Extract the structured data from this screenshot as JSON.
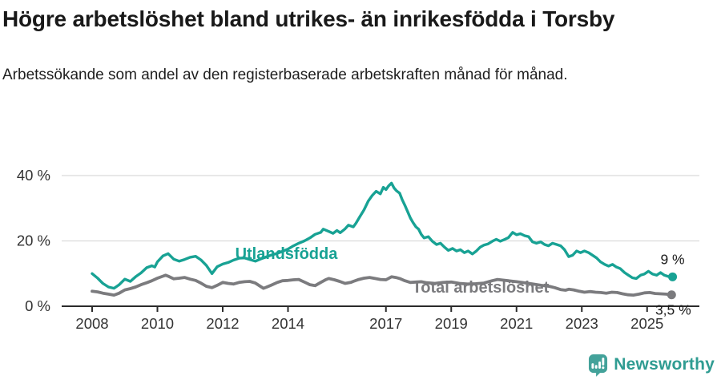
{
  "header": {
    "title": "Högre arbetslöshet bland utrikes- än inrikesfödda i Torsby",
    "subtitle": "Arbetssökande som andel av den registerbaserade arbetskraften månad för månad."
  },
  "footer": {
    "brand": "Newsworthy"
  },
  "colors": {
    "accent_teal": "#18A294",
    "series_gray": "#7B7B7E",
    "gridline": "#DBDBDB",
    "axis_line": "#2B2B2B",
    "axis_text": "#333333",
    "annotation_text": "#1A1A1A",
    "logo_badge": "#43A29A",
    "logo_text": "#2F9C92",
    "logo_glyph": "#FFFFFF"
  },
  "chart_data": {
    "type": "line",
    "title": "",
    "xlabel": "",
    "ylabel": "",
    "x_unit": "year (monthly data)",
    "xlim": [
      2007.07,
      2026.6
    ],
    "ylim": [
      0,
      44
    ],
    "grid": true,
    "grid_values": [
      20,
      40
    ],
    "y_ticks": [
      {
        "value": 0,
        "label": "0 %"
      },
      {
        "value": 20,
        "label": "20 %"
      },
      {
        "value": 40,
        "label": "40 %"
      }
    ],
    "x_ticks": [
      {
        "value": 2008,
        "label": "2008"
      },
      {
        "value": 2010,
        "label": "2010"
      },
      {
        "value": 2012,
        "label": "2012"
      },
      {
        "value": 2014,
        "label": "2014"
      },
      {
        "value": 2017,
        "label": "2017"
      },
      {
        "value": 2019,
        "label": "2019"
      },
      {
        "value": 2021,
        "label": "2021"
      },
      {
        "value": 2023,
        "label": "2023"
      },
      {
        "value": 2025,
        "label": "2025"
      }
    ],
    "legend_position": "inline-labels",
    "series": [
      {
        "name": "Utlandsfödda",
        "color": "#18A294",
        "end_label": "9 %",
        "end_value": 9,
        "name_x": 2013.95,
        "name_y": 16.2,
        "end_label_dx": 0,
        "end_label_dy": -16,
        "points": [
          [
            2008.0,
            10.0
          ],
          [
            2008.17,
            8.6
          ],
          [
            2008.33,
            7.0
          ],
          [
            2008.5,
            5.9
          ],
          [
            2008.67,
            5.5
          ],
          [
            2008.83,
            6.6
          ],
          [
            2009.0,
            8.3
          ],
          [
            2009.17,
            7.6
          ],
          [
            2009.33,
            9.0
          ],
          [
            2009.5,
            10.2
          ],
          [
            2009.67,
            11.8
          ],
          [
            2009.83,
            12.4
          ],
          [
            2009.92,
            12.0
          ],
          [
            2010.0,
            13.6
          ],
          [
            2010.17,
            15.4
          ],
          [
            2010.33,
            16.1
          ],
          [
            2010.5,
            14.4
          ],
          [
            2010.67,
            13.8
          ],
          [
            2010.83,
            14.3
          ],
          [
            2011.0,
            15.0
          ],
          [
            2011.17,
            15.3
          ],
          [
            2011.33,
            14.2
          ],
          [
            2011.5,
            12.5
          ],
          [
            2011.67,
            10.0
          ],
          [
            2011.83,
            12.1
          ],
          [
            2012.0,
            12.9
          ],
          [
            2012.17,
            13.4
          ],
          [
            2012.33,
            14.1
          ],
          [
            2012.5,
            14.7
          ],
          [
            2012.67,
            14.8
          ],
          [
            2012.83,
            14.3
          ],
          [
            2013.0,
            13.8
          ],
          [
            2013.17,
            14.5
          ],
          [
            2013.33,
            15.1
          ],
          [
            2013.5,
            15.7
          ],
          [
            2013.67,
            16.2
          ],
          [
            2013.83,
            16.8
          ],
          [
            2014.0,
            17.5
          ],
          [
            2014.17,
            18.5
          ],
          [
            2014.33,
            19.3
          ],
          [
            2014.5,
            20.0
          ],
          [
            2014.67,
            20.9
          ],
          [
            2014.83,
            22.0
          ],
          [
            2015.0,
            22.6
          ],
          [
            2015.08,
            23.6
          ],
          [
            2015.25,
            22.9
          ],
          [
            2015.38,
            22.3
          ],
          [
            2015.5,
            23.2
          ],
          [
            2015.6,
            22.5
          ],
          [
            2015.75,
            23.7
          ],
          [
            2015.85,
            24.8
          ],
          [
            2016.0,
            24.3
          ],
          [
            2016.08,
            25.4
          ],
          [
            2016.2,
            27.4
          ],
          [
            2016.33,
            29.5
          ],
          [
            2016.46,
            32.2
          ],
          [
            2016.58,
            33.9
          ],
          [
            2016.7,
            35.2
          ],
          [
            2016.83,
            34.4
          ],
          [
            2016.92,
            36.4
          ],
          [
            2017.0,
            35.7
          ],
          [
            2017.08,
            36.8
          ],
          [
            2017.17,
            37.7
          ],
          [
            2017.25,
            36.2
          ],
          [
            2017.33,
            35.3
          ],
          [
            2017.42,
            34.6
          ],
          [
            2017.5,
            32.6
          ],
          [
            2017.58,
            30.9
          ],
          [
            2017.67,
            28.8
          ],
          [
            2017.75,
            27.0
          ],
          [
            2017.83,
            25.6
          ],
          [
            2017.92,
            24.3
          ],
          [
            2018.0,
            23.6
          ],
          [
            2018.08,
            22.0
          ],
          [
            2018.17,
            20.9
          ],
          [
            2018.3,
            21.3
          ],
          [
            2018.42,
            19.9
          ],
          [
            2018.55,
            18.9
          ],
          [
            2018.67,
            19.3
          ],
          [
            2018.79,
            18.1
          ],
          [
            2018.91,
            17.1
          ],
          [
            2019.04,
            17.7
          ],
          [
            2019.16,
            16.9
          ],
          [
            2019.28,
            17.3
          ],
          [
            2019.4,
            16.4
          ],
          [
            2019.52,
            16.9
          ],
          [
            2019.65,
            16.0
          ],
          [
            2019.77,
            16.9
          ],
          [
            2019.89,
            18.1
          ],
          [
            2020.0,
            18.7
          ],
          [
            2020.13,
            19.1
          ],
          [
            2020.26,
            19.9
          ],
          [
            2020.38,
            20.5
          ],
          [
            2020.5,
            19.9
          ],
          [
            2020.62,
            20.4
          ],
          [
            2020.75,
            21.0
          ],
          [
            2020.88,
            22.6
          ],
          [
            2021.0,
            21.9
          ],
          [
            2021.12,
            22.2
          ],
          [
            2021.25,
            21.6
          ],
          [
            2021.37,
            21.3
          ],
          [
            2021.49,
            19.7
          ],
          [
            2021.61,
            19.3
          ],
          [
            2021.74,
            19.7
          ],
          [
            2021.86,
            18.9
          ],
          [
            2021.98,
            18.5
          ],
          [
            2022.1,
            19.3
          ],
          [
            2022.23,
            18.9
          ],
          [
            2022.35,
            18.5
          ],
          [
            2022.47,
            17.3
          ],
          [
            2022.6,
            15.2
          ],
          [
            2022.72,
            15.6
          ],
          [
            2022.84,
            16.9
          ],
          [
            2022.96,
            16.4
          ],
          [
            2023.08,
            16.9
          ],
          [
            2023.21,
            16.4
          ],
          [
            2023.33,
            15.6
          ],
          [
            2023.45,
            14.8
          ],
          [
            2023.57,
            13.6
          ],
          [
            2023.7,
            12.8
          ],
          [
            2023.82,
            12.3
          ],
          [
            2023.94,
            12.8
          ],
          [
            2024.06,
            12.0
          ],
          [
            2024.18,
            11.5
          ],
          [
            2024.31,
            10.3
          ],
          [
            2024.43,
            9.5
          ],
          [
            2024.55,
            8.7
          ],
          [
            2024.67,
            8.5
          ],
          [
            2024.8,
            9.5
          ],
          [
            2024.92,
            9.9
          ],
          [
            2025.04,
            10.7
          ],
          [
            2025.16,
            9.9
          ],
          [
            2025.29,
            9.5
          ],
          [
            2025.41,
            10.3
          ],
          [
            2025.53,
            9.5
          ],
          [
            2025.65,
            9.1
          ],
          [
            2025.78,
            9.0
          ]
        ]
      },
      {
        "name": "Total arbetslöshet",
        "color": "#7B7B7E",
        "end_label": "3,5 %",
        "end_value": 3.5,
        "name_x": 2019.9,
        "name_y": 5.9,
        "end_label_dx": 2,
        "end_label_dy": 25,
        "points": [
          [
            2008.0,
            4.6
          ],
          [
            2008.17,
            4.4
          ],
          [
            2008.33,
            4.0
          ],
          [
            2008.5,
            3.7
          ],
          [
            2008.67,
            3.4
          ],
          [
            2008.83,
            4.0
          ],
          [
            2009.0,
            5.0
          ],
          [
            2009.17,
            5.4
          ],
          [
            2009.33,
            5.9
          ],
          [
            2009.5,
            6.6
          ],
          [
            2009.67,
            7.2
          ],
          [
            2009.83,
            7.8
          ],
          [
            2010.0,
            8.6
          ],
          [
            2010.17,
            9.2
          ],
          [
            2010.25,
            9.5
          ],
          [
            2010.33,
            9.2
          ],
          [
            2010.5,
            8.4
          ],
          [
            2010.67,
            8.6
          ],
          [
            2010.83,
            8.8
          ],
          [
            2011.0,
            8.3
          ],
          [
            2011.17,
            7.9
          ],
          [
            2011.33,
            7.1
          ],
          [
            2011.5,
            6.1
          ],
          [
            2011.67,
            5.7
          ],
          [
            2011.83,
            6.4
          ],
          [
            2012.0,
            7.3
          ],
          [
            2012.17,
            7.0
          ],
          [
            2012.33,
            6.8
          ],
          [
            2012.5,
            7.3
          ],
          [
            2012.67,
            7.5
          ],
          [
            2012.83,
            7.6
          ],
          [
            2013.0,
            7.1
          ],
          [
            2013.17,
            6.0
          ],
          [
            2013.25,
            5.5
          ],
          [
            2013.33,
            5.8
          ],
          [
            2013.5,
            6.5
          ],
          [
            2013.67,
            7.3
          ],
          [
            2013.83,
            7.8
          ],
          [
            2014.0,
            7.9
          ],
          [
            2014.17,
            8.1
          ],
          [
            2014.33,
            8.2
          ],
          [
            2014.5,
            7.4
          ],
          [
            2014.67,
            6.6
          ],
          [
            2014.83,
            6.3
          ],
          [
            2015.0,
            7.3
          ],
          [
            2015.17,
            8.2
          ],
          [
            2015.25,
            8.5
          ],
          [
            2015.42,
            8.1
          ],
          [
            2015.58,
            7.6
          ],
          [
            2015.75,
            7.0
          ],
          [
            2015.92,
            7.3
          ],
          [
            2016.0,
            7.6
          ],
          [
            2016.17,
            8.2
          ],
          [
            2016.33,
            8.6
          ],
          [
            2016.5,
            8.8
          ],
          [
            2016.67,
            8.5
          ],
          [
            2016.83,
            8.2
          ],
          [
            2017.0,
            8.1
          ],
          [
            2017.17,
            9.0
          ],
          [
            2017.3,
            8.8
          ],
          [
            2017.42,
            8.5
          ],
          [
            2017.58,
            7.8
          ],
          [
            2017.75,
            7.3
          ],
          [
            2017.92,
            7.4
          ],
          [
            2018.08,
            7.5
          ],
          [
            2018.25,
            7.2
          ],
          [
            2018.5,
            7.0
          ],
          [
            2018.75,
            7.3
          ],
          [
            2019.0,
            7.4
          ],
          [
            2019.25,
            7.0
          ],
          [
            2019.5,
            6.8
          ],
          [
            2019.75,
            6.9
          ],
          [
            2020.0,
            7.1
          ],
          [
            2020.25,
            7.8
          ],
          [
            2020.42,
            8.2
          ],
          [
            2020.58,
            8.0
          ],
          [
            2020.75,
            7.8
          ],
          [
            2021.0,
            7.5
          ],
          [
            2021.25,
            7.2
          ],
          [
            2021.5,
            6.8
          ],
          [
            2021.75,
            6.4
          ],
          [
            2022.0,
            6.1
          ],
          [
            2022.17,
            5.7
          ],
          [
            2022.35,
            5.1
          ],
          [
            2022.5,
            4.9
          ],
          [
            2022.6,
            5.2
          ],
          [
            2022.75,
            5.0
          ],
          [
            2022.92,
            4.6
          ],
          [
            2023.08,
            4.3
          ],
          [
            2023.25,
            4.5
          ],
          [
            2023.42,
            4.3
          ],
          [
            2023.58,
            4.2
          ],
          [
            2023.75,
            4.0
          ],
          [
            2023.92,
            4.3
          ],
          [
            2024.08,
            4.2
          ],
          [
            2024.25,
            3.8
          ],
          [
            2024.42,
            3.5
          ],
          [
            2024.58,
            3.4
          ],
          [
            2024.75,
            3.7
          ],
          [
            2024.92,
            4.1
          ],
          [
            2025.08,
            4.2
          ],
          [
            2025.25,
            3.9
          ],
          [
            2025.42,
            3.8
          ],
          [
            2025.58,
            3.7
          ],
          [
            2025.75,
            3.5
          ]
        ]
      }
    ]
  }
}
